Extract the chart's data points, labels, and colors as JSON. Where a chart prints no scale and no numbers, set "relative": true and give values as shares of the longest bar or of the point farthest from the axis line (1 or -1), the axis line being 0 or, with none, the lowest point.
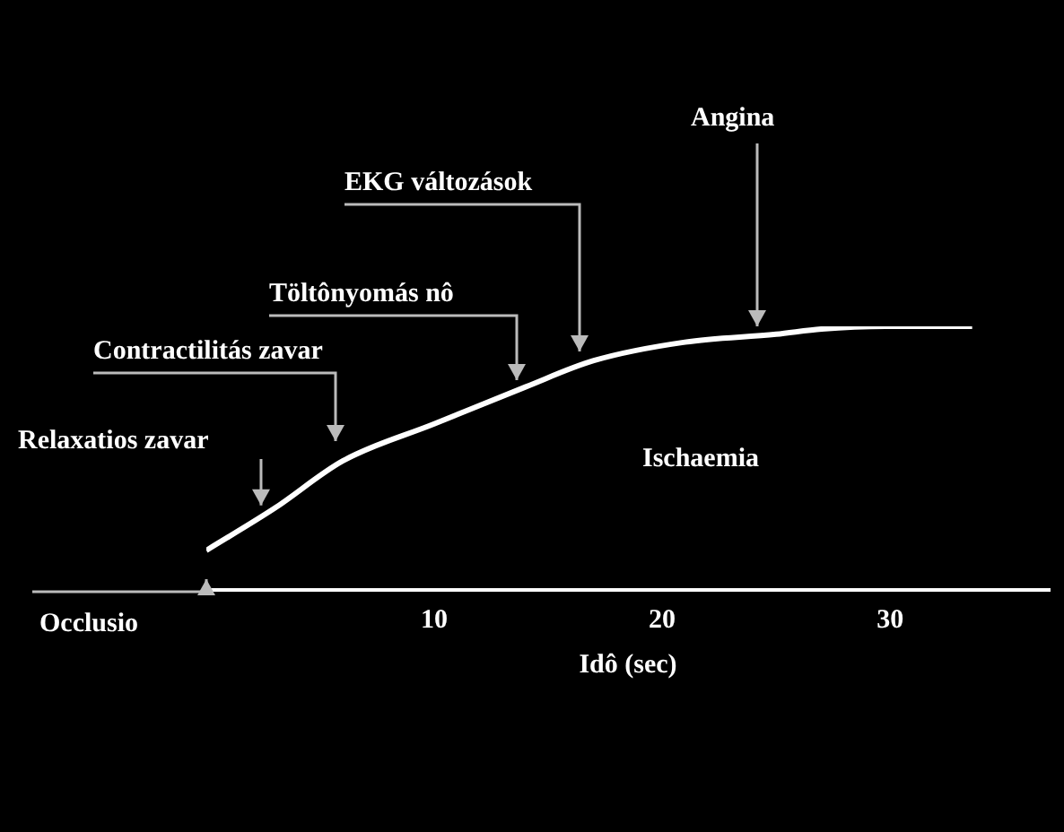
{
  "chart_data": {
    "type": "line",
    "relative": true,
    "xlabel": "Idô (sec)",
    "xlim": [
      0,
      37
    ],
    "xticks": [
      10,
      20,
      30
    ],
    "marker": "none",
    "x": [
      0,
      3,
      6,
      10,
      14,
      17,
      21,
      25,
      27,
      29.8,
      33.6
    ],
    "values": [
      0.15,
      0.31,
      0.49,
      0.63,
      0.77,
      0.87,
      0.94,
      0.97,
      0.99,
      1,
      1
    ],
    "color": "#ffffff",
    "annotations": [
      {
        "text": "Relaxatios zavar",
        "x": 2.4,
        "y": 0.28
      },
      "Contractilitás zavar",
      "Töltônyomás nô",
      "EKG változások",
      "Angina",
      {
        "text": "Occlusio",
        "x": 0,
        "y": 0
      },
      "Ischaemia"
    ]
  }
}
